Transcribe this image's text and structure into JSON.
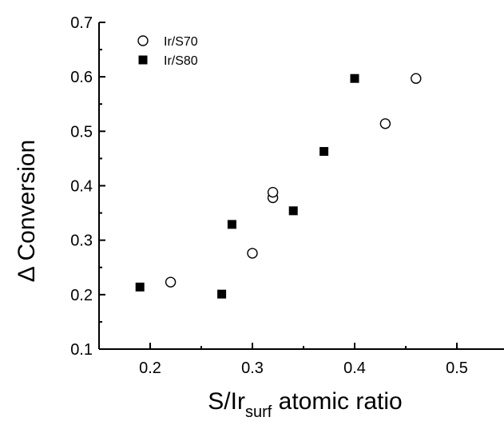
{
  "chart_data": {
    "type": "scatter",
    "title": "",
    "xlabel_main": "S/Ir",
    "xlabel_sub": "surf",
    "xlabel_rest": " atomic ratio",
    "ylabel": "Δ Conversion",
    "xlim": [
      0.15,
      0.55
    ],
    "ylim": [
      0.1,
      0.7
    ],
    "xticks": [
      0.2,
      0.3,
      0.4,
      0.5
    ],
    "xtick_labels": [
      "0.2",
      "0.3",
      "0.4",
      "0.5"
    ],
    "yticks": [
      0.1,
      0.2,
      0.3,
      0.4,
      0.5,
      0.6,
      0.7
    ],
    "ytick_labels": [
      "0.1",
      "0.2",
      "0.3",
      "0.4",
      "0.5",
      "0.6",
      "0.7"
    ],
    "grid": false,
    "legend_position": "top-left",
    "series": [
      {
        "name": "Ir/S70",
        "marker": "open-circle",
        "color": "#000000",
        "points": [
          {
            "x": 0.22,
            "y": 0.223
          },
          {
            "x": 0.3,
            "y": 0.276
          },
          {
            "x": 0.32,
            "y": 0.378
          },
          {
            "x": 0.32,
            "y": 0.388
          },
          {
            "x": 0.43,
            "y": 0.514
          },
          {
            "x": 0.46,
            "y": 0.597
          }
        ]
      },
      {
        "name": "Ir/S80",
        "marker": "filled-square",
        "color": "#000000",
        "points": [
          {
            "x": 0.19,
            "y": 0.214
          },
          {
            "x": 0.27,
            "y": 0.201
          },
          {
            "x": 0.28,
            "y": 0.329
          },
          {
            "x": 0.34,
            "y": 0.354
          },
          {
            "x": 0.37,
            "y": 0.463
          },
          {
            "x": 0.4,
            "y": 0.597
          }
        ]
      }
    ]
  }
}
